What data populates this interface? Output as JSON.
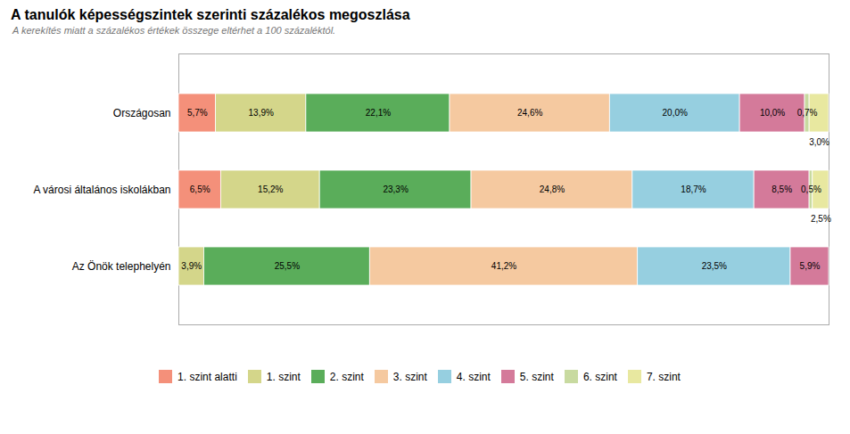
{
  "chart_data": {
    "type": "bar",
    "orientation": "horizontal",
    "stacked": true,
    "title": "A tanulók képességszintek szerinti százalékos megoszlása",
    "subtitle": "A kerekítés miatt a százalékos értékek összege eltérhet a 100 százaléktól.",
    "categories": [
      "Országosan",
      "A városi általános iskolákban",
      "Az Önök telephelyén"
    ],
    "series": [
      {
        "name": "1. szint alatti",
        "color": "#f4907a",
        "values": [
          5.7,
          6.5,
          0.0
        ],
        "value_labels": [
          "5,7%",
          "6,5%",
          null
        ]
      },
      {
        "name": "1. szint",
        "color": "#d4d68a",
        "values": [
          13.9,
          15.2,
          3.9
        ],
        "value_labels": [
          "13,9%",
          "15,2%",
          "3,9%"
        ]
      },
      {
        "name": "2. szint",
        "color": "#5aad5a",
        "values": [
          22.1,
          23.3,
          25.5
        ],
        "value_labels": [
          "22,1%",
          "23,3%",
          "25,5%"
        ]
      },
      {
        "name": "3. szint",
        "color": "#f5c9a0",
        "values": [
          24.6,
          24.8,
          41.2
        ],
        "value_labels": [
          "24,6%",
          "24,8%",
          "41,2%"
        ]
      },
      {
        "name": "4. szint",
        "color": "#96cfe0",
        "values": [
          20.0,
          18.7,
          23.5
        ],
        "value_labels": [
          "20,0%",
          "18,7%",
          "23,5%"
        ]
      },
      {
        "name": "5. szint",
        "color": "#d47a9a",
        "values": [
          10.0,
          8.5,
          5.9
        ],
        "value_labels": [
          "10,0%",
          "8,5%",
          "5,9%"
        ]
      },
      {
        "name": "6. szint",
        "color": "#c8daa0",
        "values": [
          0.7,
          0.5,
          0.0
        ],
        "value_labels": [
          "0,7%",
          "0,5%",
          null
        ]
      },
      {
        "name": "7. szint",
        "color": "#e8e8a0",
        "values": [
          3.0,
          2.5,
          0.0
        ],
        "value_labels": [
          "3,0%",
          "2,5%",
          null
        ]
      }
    ],
    "xlim": [
      0,
      100
    ],
    "data_labels": true,
    "tick_labels": "y",
    "legend": "bottom"
  }
}
